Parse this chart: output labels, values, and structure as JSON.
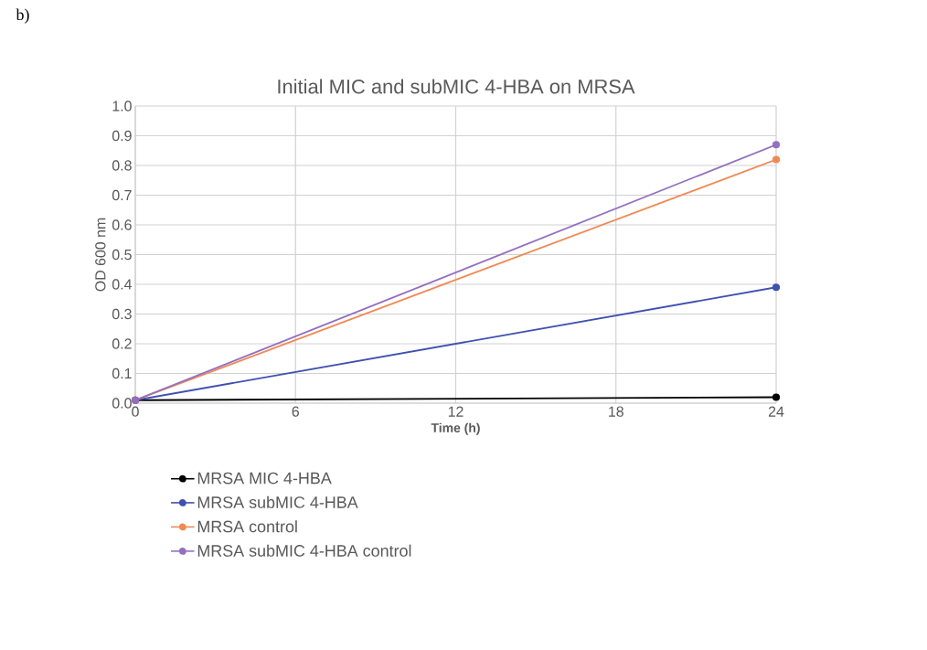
{
  "chart_data": {
    "type": "line",
    "title": "Initial MIC and subMIC 4-HBA on MRSA",
    "xlabel": "Time (h)",
    "ylabel": "OD 600 nm",
    "x": [
      0,
      24
    ],
    "series": [
      {
        "name": "MRSA MIC 4-HBA",
        "color": "#000000",
        "values": [
          0.01,
          0.02
        ]
      },
      {
        "name": "MRSA subMIC 4-HBA",
        "color": "#4050b0",
        "values": [
          0.01,
          0.39
        ]
      },
      {
        "name": "MRSA control",
        "color": "#f08a55",
        "values": [
          0.01,
          0.82
        ]
      },
      {
        "name": "MRSA subMIC 4-HBA control",
        "color": "#9370c0",
        "values": [
          0.01,
          0.87
        ]
      }
    ],
    "xlim": [
      0,
      24
    ],
    "xticks": [
      0,
      6,
      12,
      18,
      24
    ],
    "ylim": [
      0,
      1.0
    ],
    "yticks": [
      {
        "value": 0,
        "label": "0.0"
      },
      0.1,
      0.2,
      0.3,
      0.4,
      0.5,
      0.6,
      0.7,
      0.8,
      0.9,
      {
        "value": 1.0,
        "label": "1.0"
      }
    ],
    "grid": true,
    "legend": "bottom",
    "marker": "circle",
    "line_style": "solid",
    "annotations": [
      "b)"
    ]
  }
}
